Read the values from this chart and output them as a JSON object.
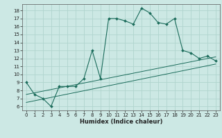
{
  "xlabel": "Humidex (Indice chaleur)",
  "background_color": "#cce8e4",
  "grid_color": "#b0d4ce",
  "line_color": "#1a6b5a",
  "xlim": [
    -0.5,
    23.5
  ],
  "ylim": [
    5.5,
    18.8
  ],
  "x_ticks": [
    0,
    1,
    2,
    3,
    4,
    5,
    6,
    7,
    8,
    9,
    10,
    11,
    12,
    13,
    14,
    15,
    16,
    17,
    18,
    19,
    20,
    21,
    22,
    23
  ],
  "y_ticks": [
    6,
    7,
    8,
    9,
    10,
    11,
    12,
    13,
    14,
    15,
    16,
    17,
    18
  ],
  "main_line": [
    [
      0,
      9.0
    ],
    [
      1,
      7.5
    ],
    [
      2,
      7.0
    ],
    [
      3,
      6.0
    ],
    [
      4,
      8.5
    ],
    [
      5,
      8.5
    ],
    [
      6,
      8.5
    ],
    [
      7,
      9.5
    ],
    [
      8,
      13.0
    ],
    [
      9,
      9.5
    ],
    [
      10,
      17.0
    ],
    [
      11,
      17.0
    ],
    [
      12,
      16.7
    ],
    [
      13,
      16.3
    ],
    [
      14,
      18.3
    ],
    [
      15,
      17.7
    ],
    [
      16,
      16.5
    ],
    [
      17,
      16.3
    ],
    [
      18,
      17.0
    ],
    [
      19,
      13.0
    ],
    [
      20,
      12.7
    ],
    [
      21,
      12.0
    ],
    [
      22,
      12.3
    ],
    [
      23,
      11.7
    ]
  ],
  "lower_line1": [
    [
      0,
      7.5
    ],
    [
      23,
      12.2
    ]
  ],
  "lower_line2": [
    [
      0,
      6.5
    ],
    [
      23,
      11.3
    ]
  ]
}
